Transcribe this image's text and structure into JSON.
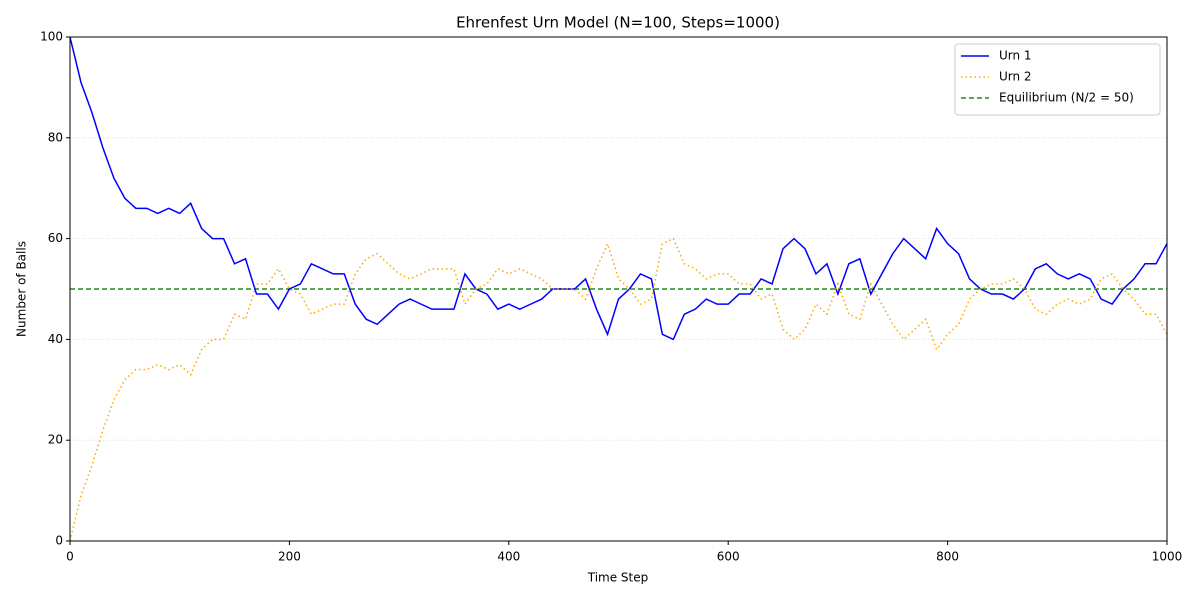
{
  "chart_data": {
    "type": "line",
    "title": "Ehrenfest Urn Model (N=100, Steps=1000)",
    "x_label": "Time Step",
    "y_label": "Number of Balls",
    "x": [
      0,
      10,
      20,
      30,
      40,
      50,
      60,
      70,
      80,
      90,
      100,
      110,
      120,
      130,
      140,
      150,
      160,
      170,
      180,
      190,
      200,
      210,
      220,
      230,
      240,
      250,
      260,
      270,
      280,
      290,
      300,
      310,
      320,
      330,
      340,
      350,
      360,
      370,
      380,
      390,
      400,
      410,
      420,
      430,
      440,
      450,
      460,
      470,
      480,
      490,
      500,
      510,
      520,
      530,
      540,
      550,
      560,
      570,
      580,
      590,
      600,
      610,
      620,
      630,
      640,
      650,
      660,
      670,
      680,
      690,
      700,
      710,
      720,
      730,
      740,
      750,
      760,
      770,
      780,
      790,
      800,
      810,
      820,
      830,
      840,
      850,
      860,
      870,
      880,
      890,
      900,
      910,
      920,
      930,
      940,
      950,
      960,
      970,
      980,
      990,
      1000
    ],
    "series": [
      {
        "name": "Urn 1",
        "color": "#0000ff",
        "linestyle": "solid",
        "values": [
          100,
          91,
          85,
          78,
          72,
          68,
          66,
          66,
          65,
          66,
          65,
          67,
          62,
          60,
          60,
          55,
          56,
          49,
          49,
          46,
          50,
          51,
          55,
          54,
          53,
          53,
          47,
          44,
          43,
          45,
          47,
          48,
          47,
          46,
          46,
          46,
          53,
          50,
          49,
          46,
          47,
          46,
          47,
          48,
          50,
          50,
          50,
          52,
          46,
          41,
          48,
          50,
          53,
          52,
          41,
          40,
          45,
          46,
          48,
          47,
          47,
          49,
          49,
          52,
          51,
          58,
          60,
          58,
          53,
          55,
          49,
          55,
          56,
          49,
          53,
          57,
          60,
          58,
          56,
          62,
          59,
          57,
          52,
          50,
          49,
          49,
          48,
          50,
          54,
          55,
          53,
          52,
          53,
          52,
          48,
          47,
          50,
          52,
          55,
          55,
          59
        ]
      },
      {
        "name": "Urn 2",
        "color": "#ffa500",
        "linestyle": "dotted",
        "values": [
          0,
          9,
          15,
          22,
          28,
          32,
          34,
          34,
          35,
          34,
          35,
          33,
          38,
          40,
          40,
          45,
          44,
          51,
          51,
          54,
          50,
          49,
          45,
          46,
          47,
          47,
          53,
          56,
          57,
          55,
          53,
          52,
          53,
          54,
          54,
          54,
          47,
          50,
          51,
          54,
          53,
          54,
          53,
          52,
          50,
          50,
          50,
          48,
          54,
          59,
          52,
          50,
          47,
          48,
          59,
          60,
          55,
          54,
          52,
          53,
          53,
          51,
          51,
          48,
          49,
          42,
          40,
          42,
          47,
          45,
          51,
          45,
          44,
          51,
          47,
          43,
          40,
          42,
          44,
          38,
          41,
          43,
          48,
          50,
          51,
          51,
          52,
          50,
          46,
          45,
          47,
          48,
          47,
          48,
          52,
          53,
          50,
          48,
          45,
          45,
          41
        ]
      }
    ],
    "hlines": [
      {
        "name": "Equilibrium (N/2 = 50)",
        "value": 50,
        "color": "#228b22",
        "linestyle": "dashed"
      }
    ],
    "xlim": [
      0,
      1000
    ],
    "xticks": [
      0,
      200,
      400,
      600,
      800,
      1000
    ],
    "ylim": [
      0,
      100
    ],
    "yticks": [
      0,
      20,
      40,
      60,
      80,
      100
    ],
    "grid": "y",
    "legend": "upper right"
  }
}
